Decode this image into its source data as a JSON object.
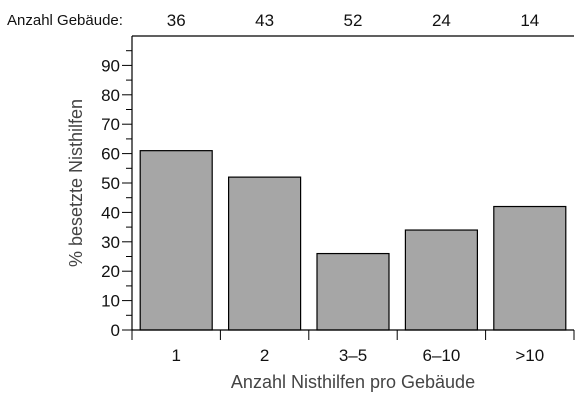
{
  "chart_data": {
    "type": "bar",
    "categories": [
      "1",
      "2",
      "3–5",
      "6–10",
      ">10"
    ],
    "values": [
      61,
      52,
      26,
      34,
      42
    ],
    "title": "",
    "xlabel": "Anzahl Nisthilfen pro Gebäude",
    "ylabel": "% besetzte Nisthilfen",
    "ylim": [
      0,
      100
    ],
    "yticks": [
      0,
      10,
      20,
      30,
      40,
      50,
      60,
      70,
      80,
      90
    ],
    "grid": false,
    "bar_color": "#a6a6a6",
    "top_counts_label": "Anzahl Gebäude:",
    "top_counts": [
      "36",
      "43",
      "52",
      "24",
      "14"
    ]
  }
}
